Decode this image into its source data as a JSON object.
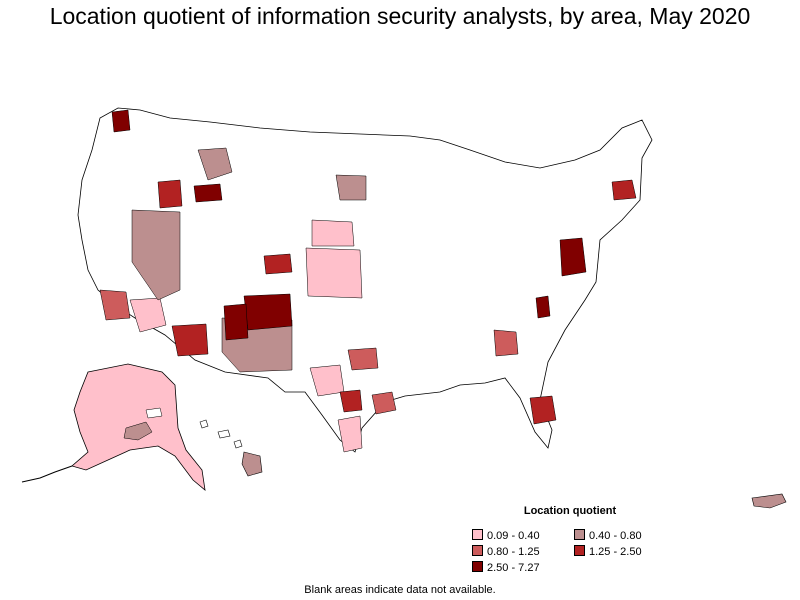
{
  "title": "Location quotient of information security analysts, by area, May 2020",
  "legend": {
    "title": "Location quotient",
    "items": [
      {
        "label": "0.09 - 0.40",
        "color": "#ffc0cb"
      },
      {
        "label": "0.40 - 0.80",
        "color": "#bc8f8f"
      },
      {
        "label": "0.80 - 1.25",
        "color": "#cd5c5c"
      },
      {
        "label": "1.25 - 2.50",
        "color": "#b22222"
      },
      {
        "label": "2.50 - 7.27",
        "color": "#800000"
      }
    ]
  },
  "footnote": "Blank areas indicate data not available.",
  "colors": {
    "no_data": "#ffffff",
    "boundary": "#000000"
  }
}
